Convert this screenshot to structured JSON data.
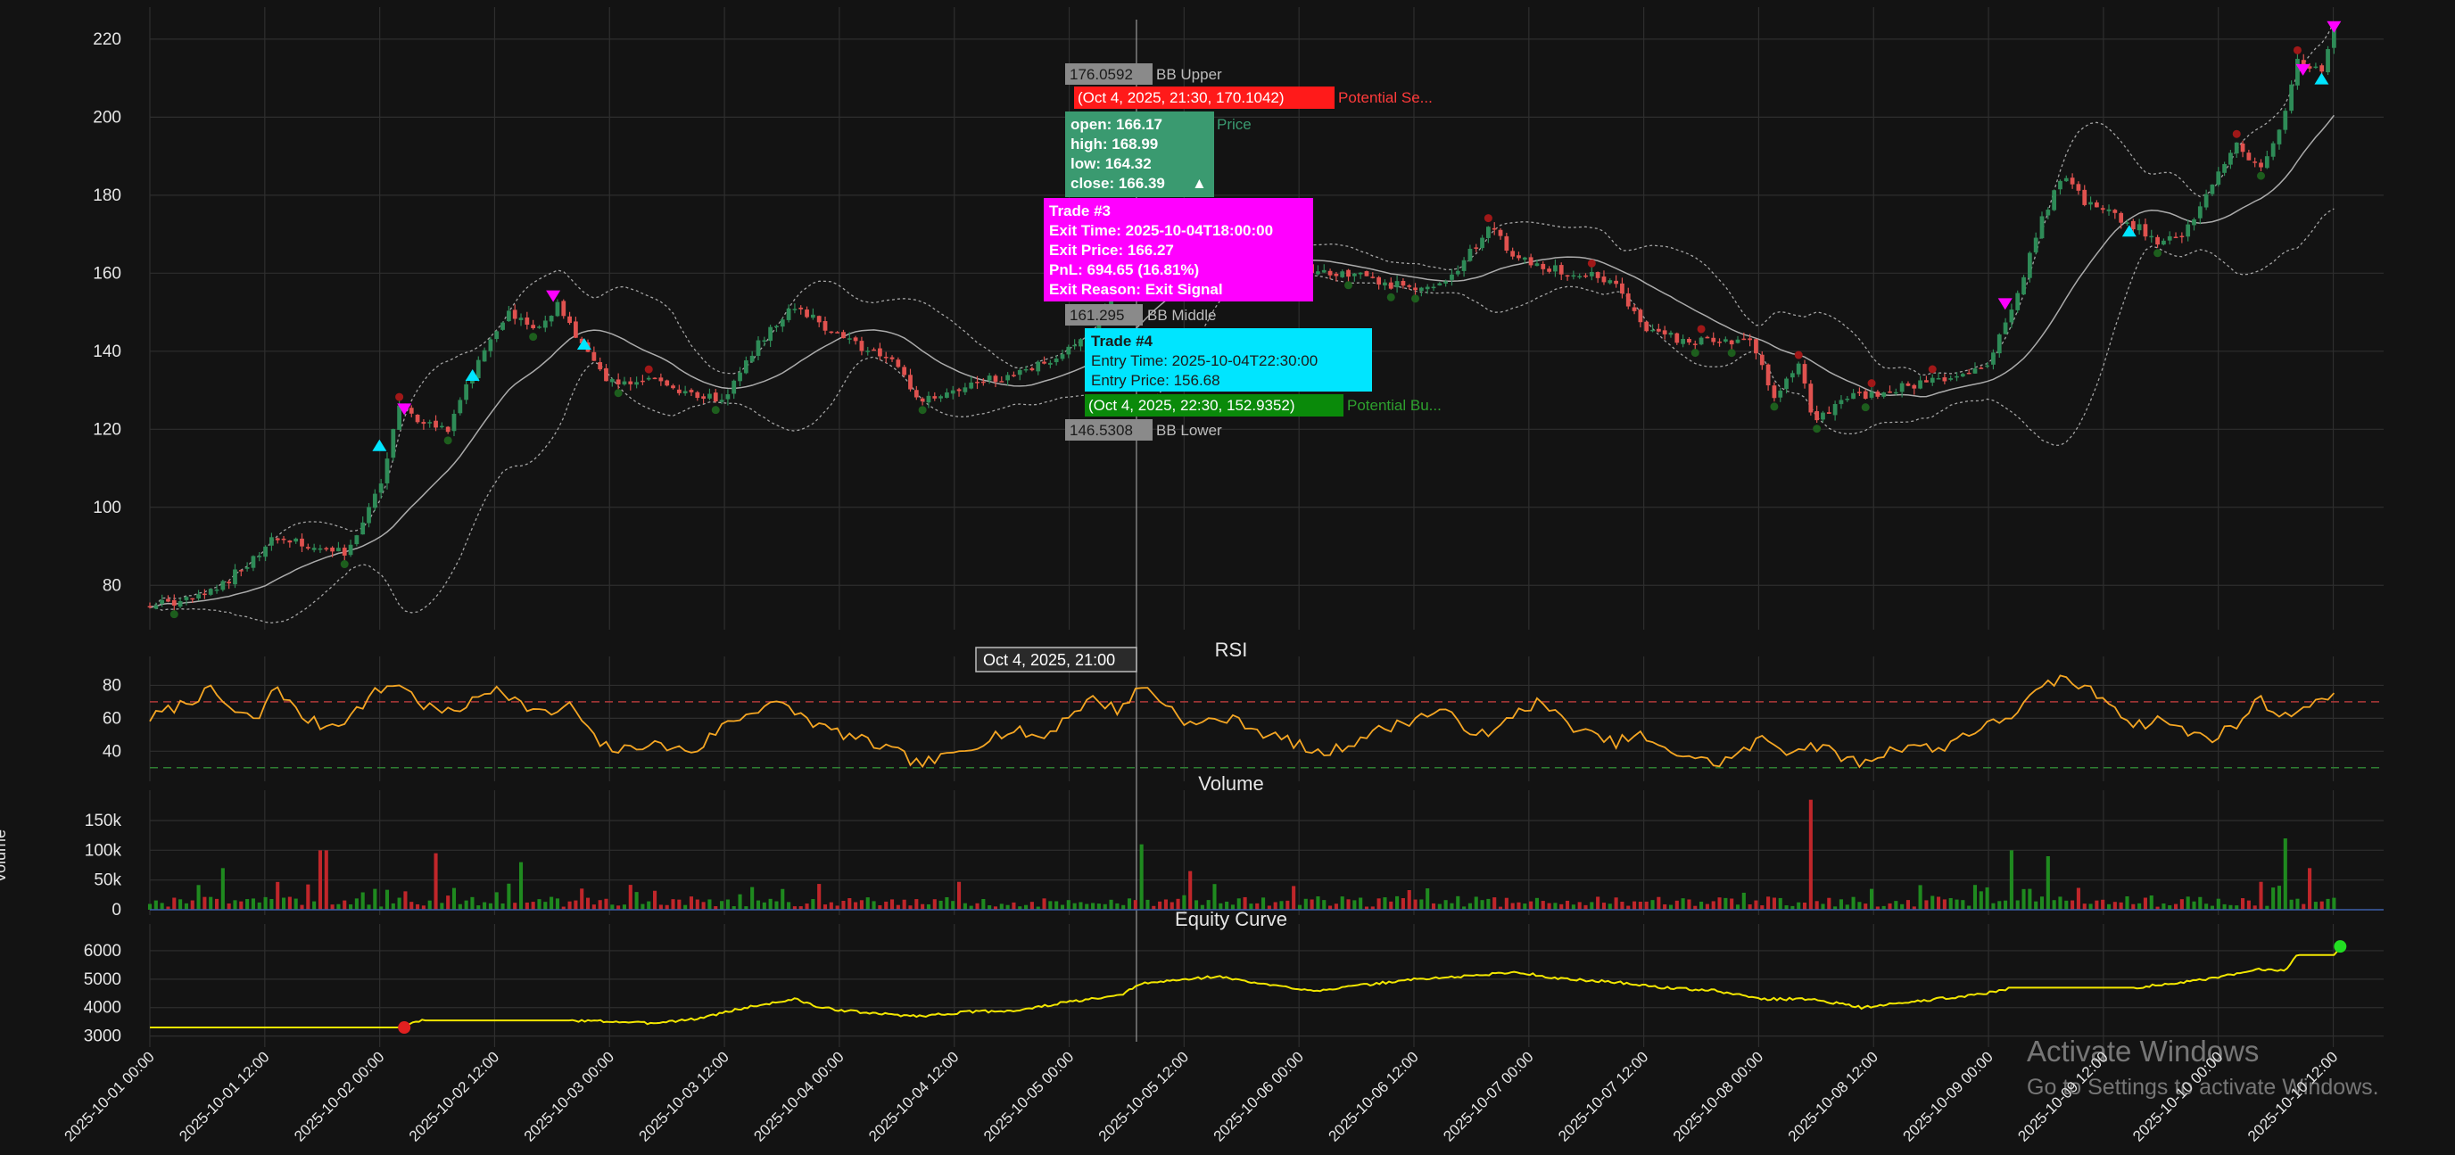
{
  "theme": {
    "background": "#131313",
    "grid": "#2e2e2e",
    "axis_text": "#e6e6e6",
    "bull": "#2e8b57",
    "bear": "#e0524f",
    "rsi": "#f5a623",
    "rsi_overbought": "#b03a3a",
    "rsi_oversold": "#2e7d32",
    "equity": "#f2e600",
    "bb": "#bdbdbd",
    "sell_marker": "#ff00ff",
    "buy_marker": "#00e5ff"
  },
  "chart_data": [
    {
      "type": "candlestick",
      "series": [
        {
          "name": "Price",
          "role": "ohlc"
        },
        {
          "name": "BB Upper",
          "role": "band"
        },
        {
          "name": "BB Middle",
          "role": "band"
        },
        {
          "name": "BB Lower",
          "role": "band"
        }
      ],
      "x_range": [
        "2025-10-01 00:00",
        "2025-10-10 12:00"
      ],
      "ylim": [
        70,
        225
      ],
      "yticks": [
        80,
        100,
        120,
        140,
        160,
        180,
        200,
        220
      ],
      "close_keypoints": [
        {
          "t": 0,
          "v": 75
        },
        {
          "t": 3,
          "v": 76
        },
        {
          "t": 5,
          "v": 78
        },
        {
          "t": 8,
          "v": 86
        },
        {
          "t": 10,
          "v": 92
        },
        {
          "t": 13,
          "v": 90
        },
        {
          "t": 16,
          "v": 88
        },
        {
          "t": 17,
          "v": 95
        },
        {
          "t": 19,
          "v": 110
        },
        {
          "t": 20,
          "v": 126
        },
        {
          "t": 22,
          "v": 122
        },
        {
          "t": 24,
          "v": 120
        },
        {
          "t": 25,
          "v": 128
        },
        {
          "t": 27,
          "v": 140
        },
        {
          "t": 29,
          "v": 150
        },
        {
          "t": 31,
          "v": 145
        },
        {
          "t": 33,
          "v": 152
        },
        {
          "t": 35,
          "v": 140
        },
        {
          "t": 37,
          "v": 132
        },
        {
          "t": 40,
          "v": 133
        },
        {
          "t": 43,
          "v": 130
        },
        {
          "t": 46,
          "v": 127
        },
        {
          "t": 49,
          "v": 142
        },
        {
          "t": 52,
          "v": 152
        },
        {
          "t": 54,
          "v": 147
        },
        {
          "t": 56,
          "v": 143
        },
        {
          "t": 58,
          "v": 140
        },
        {
          "t": 60,
          "v": 137
        },
        {
          "t": 62,
          "v": 127
        },
        {
          "t": 64,
          "v": 128
        },
        {
          "t": 66,
          "v": 132
        },
        {
          "t": 70,
          "v": 134
        },
        {
          "t": 73,
          "v": 138
        },
        {
          "t": 75,
          "v": 143
        },
        {
          "t": 77,
          "v": 150
        },
        {
          "t": 79,
          "v": 166
        },
        {
          "t": 81,
          "v": 166.4
        },
        {
          "t": 83,
          "v": 157
        },
        {
          "t": 85,
          "v": 163
        },
        {
          "t": 88,
          "v": 166
        },
        {
          "t": 91,
          "v": 162
        },
        {
          "t": 94,
          "v": 161
        },
        {
          "t": 97,
          "v": 160
        },
        {
          "t": 100,
          "v": 157
        },
        {
          "t": 103,
          "v": 156
        },
        {
          "t": 105,
          "v": 160
        },
        {
          "t": 108,
          "v": 172
        },
        {
          "t": 110,
          "v": 164
        },
        {
          "t": 112,
          "v": 162
        },
        {
          "t": 115,
          "v": 160
        },
        {
          "t": 118,
          "v": 158
        },
        {
          "t": 120,
          "v": 147
        },
        {
          "t": 123,
          "v": 143
        },
        {
          "t": 126,
          "v": 142
        },
        {
          "t": 129,
          "v": 143
        },
        {
          "t": 131,
          "v": 128
        },
        {
          "t": 133,
          "v": 138
        },
        {
          "t": 134,
          "v": 122
        },
        {
          "t": 137,
          "v": 128
        },
        {
          "t": 140,
          "v": 130
        },
        {
          "t": 144,
          "v": 133
        },
        {
          "t": 148,
          "v": 136
        },
        {
          "t": 150,
          "v": 150
        },
        {
          "t": 152,
          "v": 170
        },
        {
          "t": 154,
          "v": 185
        },
        {
          "t": 156,
          "v": 178
        },
        {
          "t": 158,
          "v": 175
        },
        {
          "t": 160,
          "v": 172
        },
        {
          "t": 162,
          "v": 168
        },
        {
          "t": 164,
          "v": 170
        },
        {
          "t": 166,
          "v": 182
        },
        {
          "t": 168,
          "v": 193
        },
        {
          "t": 170,
          "v": 186
        },
        {
          "t": 172,
          "v": 200
        },
        {
          "t": 173,
          "v": 214
        },
        {
          "t": 175,
          "v": 212
        },
        {
          "t": 176,
          "v": 222
        }
      ],
      "sell_signals": [
        {
          "t": 20.5,
          "v": 125
        },
        {
          "t": 32.5,
          "v": 154
        },
        {
          "t": 78.5,
          "v": 166
        },
        {
          "t": 149.5,
          "v": 152
        },
        {
          "t": 173.5,
          "v": 212
        },
        {
          "t": 176,
          "v": 223
        }
      ],
      "buy_signals": [
        {
          "t": 18.5,
          "v": 116
        },
        {
          "t": 26,
          "v": 134
        },
        {
          "t": 35,
          "v": 142
        },
        {
          "t": 159.5,
          "v": 171
        },
        {
          "t": 175,
          "v": 210
        }
      ],
      "tooltips": {
        "bb_upper_value": "176.0592",
        "bb_upper_label": "BB Upper",
        "sell_point": "(Oct 4, 2025, 21:30, 170.1042)",
        "sell_label": "Potential Se...",
        "ohlc_open": "open: 166.17",
        "ohlc_high": "high: 168.99",
        "ohlc_low": "low: 164.32",
        "ohlc_close": "close: 166.39",
        "ohlc_arrow": "▲",
        "ohlc_label": "Price",
        "trade3_title": "Trade #3",
        "trade3_exit_time": "Exit Time: 2025-10-04T18:00:00",
        "trade3_exit_price": "Exit Price: 166.27",
        "trade3_pnl": "PnL: 694.65 (16.81%)",
        "trade3_reason": "Exit Reason: Exit Signal",
        "bb_middle_value": "161.295",
        "bb_middle_label": "BB Middle",
        "trade4_title": "Trade #4",
        "trade4_entry_time": "Entry Time: 2025-10-04T22:30:00",
        "trade4_entry_price": "Entry Price: 156.68",
        "buy_point": "(Oct 4, 2025, 22:30, 152.9352)",
        "buy_label": "Potential Bu...",
        "bb_lower_value": "146.5308",
        "bb_lower_label": "BB Lower"
      }
    },
    {
      "type": "line",
      "title": "RSI",
      "series": [
        {
          "name": "RSI"
        }
      ],
      "ylim": [
        25,
        90
      ],
      "yticks": [
        40,
        60,
        80
      ],
      "levels": {
        "overbought": 70,
        "oversold": 30
      },
      "keypoints": [
        {
          "t": 0,
          "v": 60
        },
        {
          "t": 3,
          "v": 70
        },
        {
          "t": 5,
          "v": 77
        },
        {
          "t": 7,
          "v": 62
        },
        {
          "t": 9,
          "v": 60
        },
        {
          "t": 10,
          "v": 82
        },
        {
          "t": 12,
          "v": 62
        },
        {
          "t": 14,
          "v": 55
        },
        {
          "t": 16,
          "v": 60
        },
        {
          "t": 18,
          "v": 75
        },
        {
          "t": 20,
          "v": 82
        },
        {
          "t": 22,
          "v": 68
        },
        {
          "t": 24,
          "v": 63
        },
        {
          "t": 26,
          "v": 70
        },
        {
          "t": 28,
          "v": 80
        },
        {
          "t": 30,
          "v": 68
        },
        {
          "t": 32,
          "v": 62
        },
        {
          "t": 34,
          "v": 68
        },
        {
          "t": 36,
          "v": 45
        },
        {
          "t": 38,
          "v": 40
        },
        {
          "t": 40,
          "v": 45
        },
        {
          "t": 42,
          "v": 42
        },
        {
          "t": 44,
          "v": 40
        },
        {
          "t": 46,
          "v": 55
        },
        {
          "t": 48,
          "v": 62
        },
        {
          "t": 50,
          "v": 70
        },
        {
          "t": 52,
          "v": 64
        },
        {
          "t": 54,
          "v": 55
        },
        {
          "t": 56,
          "v": 50
        },
        {
          "t": 58,
          "v": 45
        },
        {
          "t": 60,
          "v": 40
        },
        {
          "t": 62,
          "v": 32
        },
        {
          "t": 64,
          "v": 36
        },
        {
          "t": 66,
          "v": 42
        },
        {
          "t": 68,
          "v": 50
        },
        {
          "t": 70,
          "v": 52
        },
        {
          "t": 72,
          "v": 48
        },
        {
          "t": 74,
          "v": 62
        },
        {
          "t": 76,
          "v": 72
        },
        {
          "t": 78,
          "v": 65
        },
        {
          "t": 80,
          "v": 80
        },
        {
          "t": 82,
          "v": 68
        },
        {
          "t": 84,
          "v": 55
        },
        {
          "t": 86,
          "v": 60
        },
        {
          "t": 88,
          "v": 58
        },
        {
          "t": 90,
          "v": 50
        },
        {
          "t": 92,
          "v": 46
        },
        {
          "t": 94,
          "v": 38
        },
        {
          "t": 96,
          "v": 42
        },
        {
          "t": 98,
          "v": 50
        },
        {
          "t": 100,
          "v": 55
        },
        {
          "t": 102,
          "v": 60
        },
        {
          "t": 104,
          "v": 65
        },
        {
          "t": 106,
          "v": 55
        },
        {
          "t": 108,
          "v": 48
        },
        {
          "t": 110,
          "v": 64
        },
        {
          "t": 112,
          "v": 70
        },
        {
          "t": 114,
          "v": 58
        },
        {
          "t": 116,
          "v": 50
        },
        {
          "t": 118,
          "v": 45
        },
        {
          "t": 120,
          "v": 50
        },
        {
          "t": 122,
          "v": 40
        },
        {
          "t": 124,
          "v": 38
        },
        {
          "t": 126,
          "v": 32
        },
        {
          "t": 128,
          "v": 38
        },
        {
          "t": 130,
          "v": 48
        },
        {
          "t": 132,
          "v": 40
        },
        {
          "t": 134,
          "v": 44
        },
        {
          "t": 136,
          "v": 38
        },
        {
          "t": 138,
          "v": 32
        },
        {
          "t": 140,
          "v": 40
        },
        {
          "t": 142,
          "v": 45
        },
        {
          "t": 144,
          "v": 40
        },
        {
          "t": 146,
          "v": 50
        },
        {
          "t": 148,
          "v": 55
        },
        {
          "t": 150,
          "v": 62
        },
        {
          "t": 152,
          "v": 75
        },
        {
          "t": 154,
          "v": 85
        },
        {
          "t": 156,
          "v": 78
        },
        {
          "t": 158,
          "v": 70
        },
        {
          "t": 160,
          "v": 55
        },
        {
          "t": 162,
          "v": 60
        },
        {
          "t": 164,
          "v": 52
        },
        {
          "t": 166,
          "v": 48
        },
        {
          "t": 168,
          "v": 55
        },
        {
          "t": 170,
          "v": 72
        },
        {
          "t": 172,
          "v": 60
        },
        {
          "t": 174,
          "v": 70
        },
        {
          "t": 176,
          "v": 72
        }
      ],
      "crosshair_label": "Oct 4, 2025, 21:00"
    },
    {
      "type": "bar",
      "title": "Volume",
      "ylabel": "Volume",
      "ylim": [
        0,
        180000
      ],
      "yticks": [
        0,
        50000,
        100000,
        150000
      ],
      "ytick_labels": [
        "0",
        "50k",
        "100k",
        "150k"
      ],
      "typical_range": [
        5000,
        40000
      ],
      "spikes": [
        {
          "t": 6,
          "v": 70000
        },
        {
          "t": 14,
          "v": 100000
        },
        {
          "t": 23,
          "v": 95000
        },
        {
          "t": 30,
          "v": 80000
        },
        {
          "t": 80,
          "v": 110000
        },
        {
          "t": 84,
          "v": 65000
        },
        {
          "t": 134,
          "v": 185000
        },
        {
          "t": 150,
          "v": 100000
        },
        {
          "t": 153,
          "v": 90000
        },
        {
          "t": 172,
          "v": 120000
        },
        {
          "t": 174,
          "v": 70000
        }
      ]
    },
    {
      "type": "line",
      "title": "Equity Curve",
      "series": [
        {
          "name": "Equity"
        }
      ],
      "ylim": [
        2800,
        6500
      ],
      "yticks": [
        3000,
        4000,
        5000,
        6000
      ],
      "keypoints": [
        {
          "t": 0,
          "v": 3300
        },
        {
          "t": 20,
          "v": 3300
        },
        {
          "t": 22,
          "v": 3550
        },
        {
          "t": 34,
          "v": 3550
        },
        {
          "t": 38,
          "v": 3500
        },
        {
          "t": 40,
          "v": 3450
        },
        {
          "t": 44,
          "v": 3600
        },
        {
          "t": 48,
          "v": 4000
        },
        {
          "t": 52,
          "v": 4300
        },
        {
          "t": 54,
          "v": 4000
        },
        {
          "t": 56,
          "v": 3900
        },
        {
          "t": 58,
          "v": 3800
        },
        {
          "t": 62,
          "v": 3700
        },
        {
          "t": 66,
          "v": 3850
        },
        {
          "t": 70,
          "v": 3900
        },
        {
          "t": 74,
          "v": 4200
        },
        {
          "t": 78,
          "v": 4400
        },
        {
          "t": 80,
          "v": 4850
        },
        {
          "t": 86,
          "v": 5100
        },
        {
          "t": 90,
          "v": 4800
        },
        {
          "t": 94,
          "v": 4600
        },
        {
          "t": 98,
          "v": 4800
        },
        {
          "t": 102,
          "v": 5000
        },
        {
          "t": 106,
          "v": 5100
        },
        {
          "t": 110,
          "v": 5250
        },
        {
          "t": 114,
          "v": 5000
        },
        {
          "t": 118,
          "v": 4900
        },
        {
          "t": 122,
          "v": 4700
        },
        {
          "t": 126,
          "v": 4600
        },
        {
          "t": 130,
          "v": 4300
        },
        {
          "t": 134,
          "v": 4300
        },
        {
          "t": 138,
          "v": 4000
        },
        {
          "t": 142,
          "v": 4200
        },
        {
          "t": 146,
          "v": 4400
        },
        {
          "t": 148,
          "v": 4500
        },
        {
          "t": 150,
          "v": 4700
        },
        {
          "t": 160,
          "v": 4700
        },
        {
          "t": 164,
          "v": 4900
        },
        {
          "t": 166,
          "v": 5000
        },
        {
          "t": 170,
          "v": 5350
        },
        {
          "t": 172,
          "v": 5300
        },
        {
          "t": 173,
          "v": 5850
        },
        {
          "t": 176,
          "v": 5850
        },
        {
          "t": 176.5,
          "v": 6150
        }
      ],
      "markers": [
        {
          "t": 20.5,
          "v": 3300,
          "kind": "loss"
        },
        {
          "t": 176.5,
          "v": 6150,
          "kind": "win"
        }
      ]
    }
  ],
  "x_axis": {
    "tick_labels": [
      "2025-10-01 00:00",
      "2025-10-01 12:00",
      "2025-10-02 00:00",
      "2025-10-02 12:00",
      "2025-10-03 00:00",
      "2025-10-03 12:00",
      "2025-10-04 00:00",
      "2025-10-04 12:00",
      "2025-10-05 00:00",
      "2025-10-05 12:00",
      "2025-10-06 00:00",
      "2025-10-06 12:00",
      "2025-10-07 00:00",
      "2025-10-07 12:00",
      "2025-10-08 00:00",
      "2025-10-08 12:00",
      "2025-10-09 00:00",
      "2025-10-09 12:00",
      "2025-10-10 00:00",
      "2025-10-10 12:00"
    ]
  },
  "watermark": {
    "title": "Activate Windows",
    "subtitle": "Go to Settings to activate Windows."
  }
}
